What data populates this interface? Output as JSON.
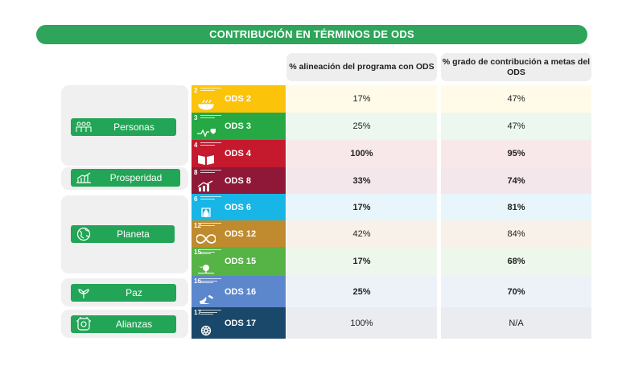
{
  "title": "CONTRIBUCIÓN EN TÉRMINOS DE ODS",
  "headers": {
    "alignment": "% alineación del programa con ODS",
    "contribution": "% grado de contribución a metas del ODS"
  },
  "groups": [
    {
      "label": "Personas",
      "icon": "people-icon"
    },
    {
      "label": "Prosperidad",
      "icon": "growth-chart-icon"
    },
    {
      "label": "Planeta",
      "icon": "globe-icon"
    },
    {
      "label": "Paz",
      "icon": "dove-icon"
    },
    {
      "label": "Alianzas",
      "icon": "partnership-icon"
    }
  ],
  "rows": [
    {
      "number": "2",
      "ods": "ODS 2",
      "color": "#fcc30b",
      "icon": "bowl-icon",
      "alignment": "17%",
      "contribution": "47%",
      "bg": "#fffbe8"
    },
    {
      "number": "3",
      "ods": "ODS 3",
      "color": "#26a845",
      "icon": "heartbeat-icon",
      "alignment": "25%",
      "contribution": "47%",
      "bg": "#ecf7ef"
    },
    {
      "number": "4",
      "ods": "ODS 4",
      "color": "#c5192d",
      "icon": "book-icon",
      "alignment": "100%",
      "contribution": "95%",
      "bg": "#f9e8ea"
    },
    {
      "number": "8",
      "ods": "ODS 8",
      "color": "#8f1838",
      "icon": "growth-chart-icon",
      "alignment": "33%",
      "contribution": "74%",
      "bg": "#f4e7eb"
    },
    {
      "number": "6",
      "ods": "ODS 6",
      "color": "#17b6e6",
      "icon": "water-drop-icon",
      "alignment": "17%",
      "contribution": "81%",
      "bg": "#e8f6fc"
    },
    {
      "number": "12",
      "ods": "ODS 12",
      "color": "#bf8b2e",
      "icon": "infinity-icon",
      "alignment": "42%",
      "contribution": "84%",
      "bg": "#f7f1e9"
    },
    {
      "number": "15",
      "ods": "ODS 15",
      "color": "#56b345",
      "icon": "tree-bird-icon",
      "alignment": "17%",
      "contribution": "68%",
      "bg": "#eef7ec"
    },
    {
      "number": "16",
      "ods": "ODS 16",
      "color": "#5c87cc",
      "icon": "dove-gavel-icon",
      "alignment": "25%",
      "contribution": "70%",
      "bg": "#edf2f9"
    },
    {
      "number": "17",
      "ods": "ODS 17",
      "color": "#19486a",
      "icon": "flower-ring-icon",
      "alignment": "100%",
      "contribution": "N/A",
      "bg": "#ebecef"
    }
  ]
}
